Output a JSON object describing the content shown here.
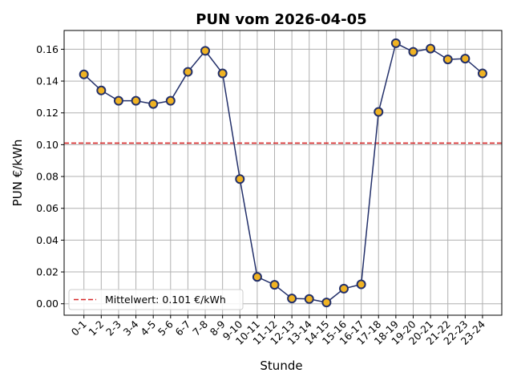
{
  "chart_data": {
    "type": "line",
    "title": "PUN vom 2026-04-05",
    "xlabel": "Stunde",
    "ylabel": "PUN €/kWh",
    "categories": [
      "0-1",
      "1-2",
      "2-3",
      "3-4",
      "4-5",
      "5-6",
      "6-7",
      "7-8",
      "8-9",
      "9-10",
      "10-11",
      "11-12",
      "12-13",
      "13-14",
      "14-15",
      "15-16",
      "16-17",
      "17-18",
      "18-19",
      "19-20",
      "20-21",
      "21-22",
      "22-23",
      "23-24"
    ],
    "series": [
      {
        "values": [
          0.1442,
          0.1341,
          0.1276,
          0.1276,
          0.1256,
          0.1276,
          0.1458,
          0.159,
          0.1448,
          0.0784,
          0.0169,
          0.0119,
          0.0033,
          0.003,
          0.0008,
          0.0095,
          0.0122,
          0.1206,
          0.1638,
          0.1584,
          0.1604,
          0.1536,
          0.1541,
          0.1448
        ],
        "line_color": "#23306a",
        "marker_color": "#f0b323",
        "marker_edge_color": "#23306a"
      }
    ],
    "mean_line": {
      "value": 0.101,
      "label": "Mittelwert: 0.101 €/kWh",
      "color": "#d62728",
      "style": "dashed"
    },
    "yticks": [
      "0.00",
      "0.02",
      "0.04",
      "0.06",
      "0.08",
      "0.10",
      "0.12",
      "0.14",
      "0.16"
    ],
    "ylim": [
      -0.0072,
      0.1718
    ],
    "grid": true,
    "legend_position": "lower-left"
  }
}
